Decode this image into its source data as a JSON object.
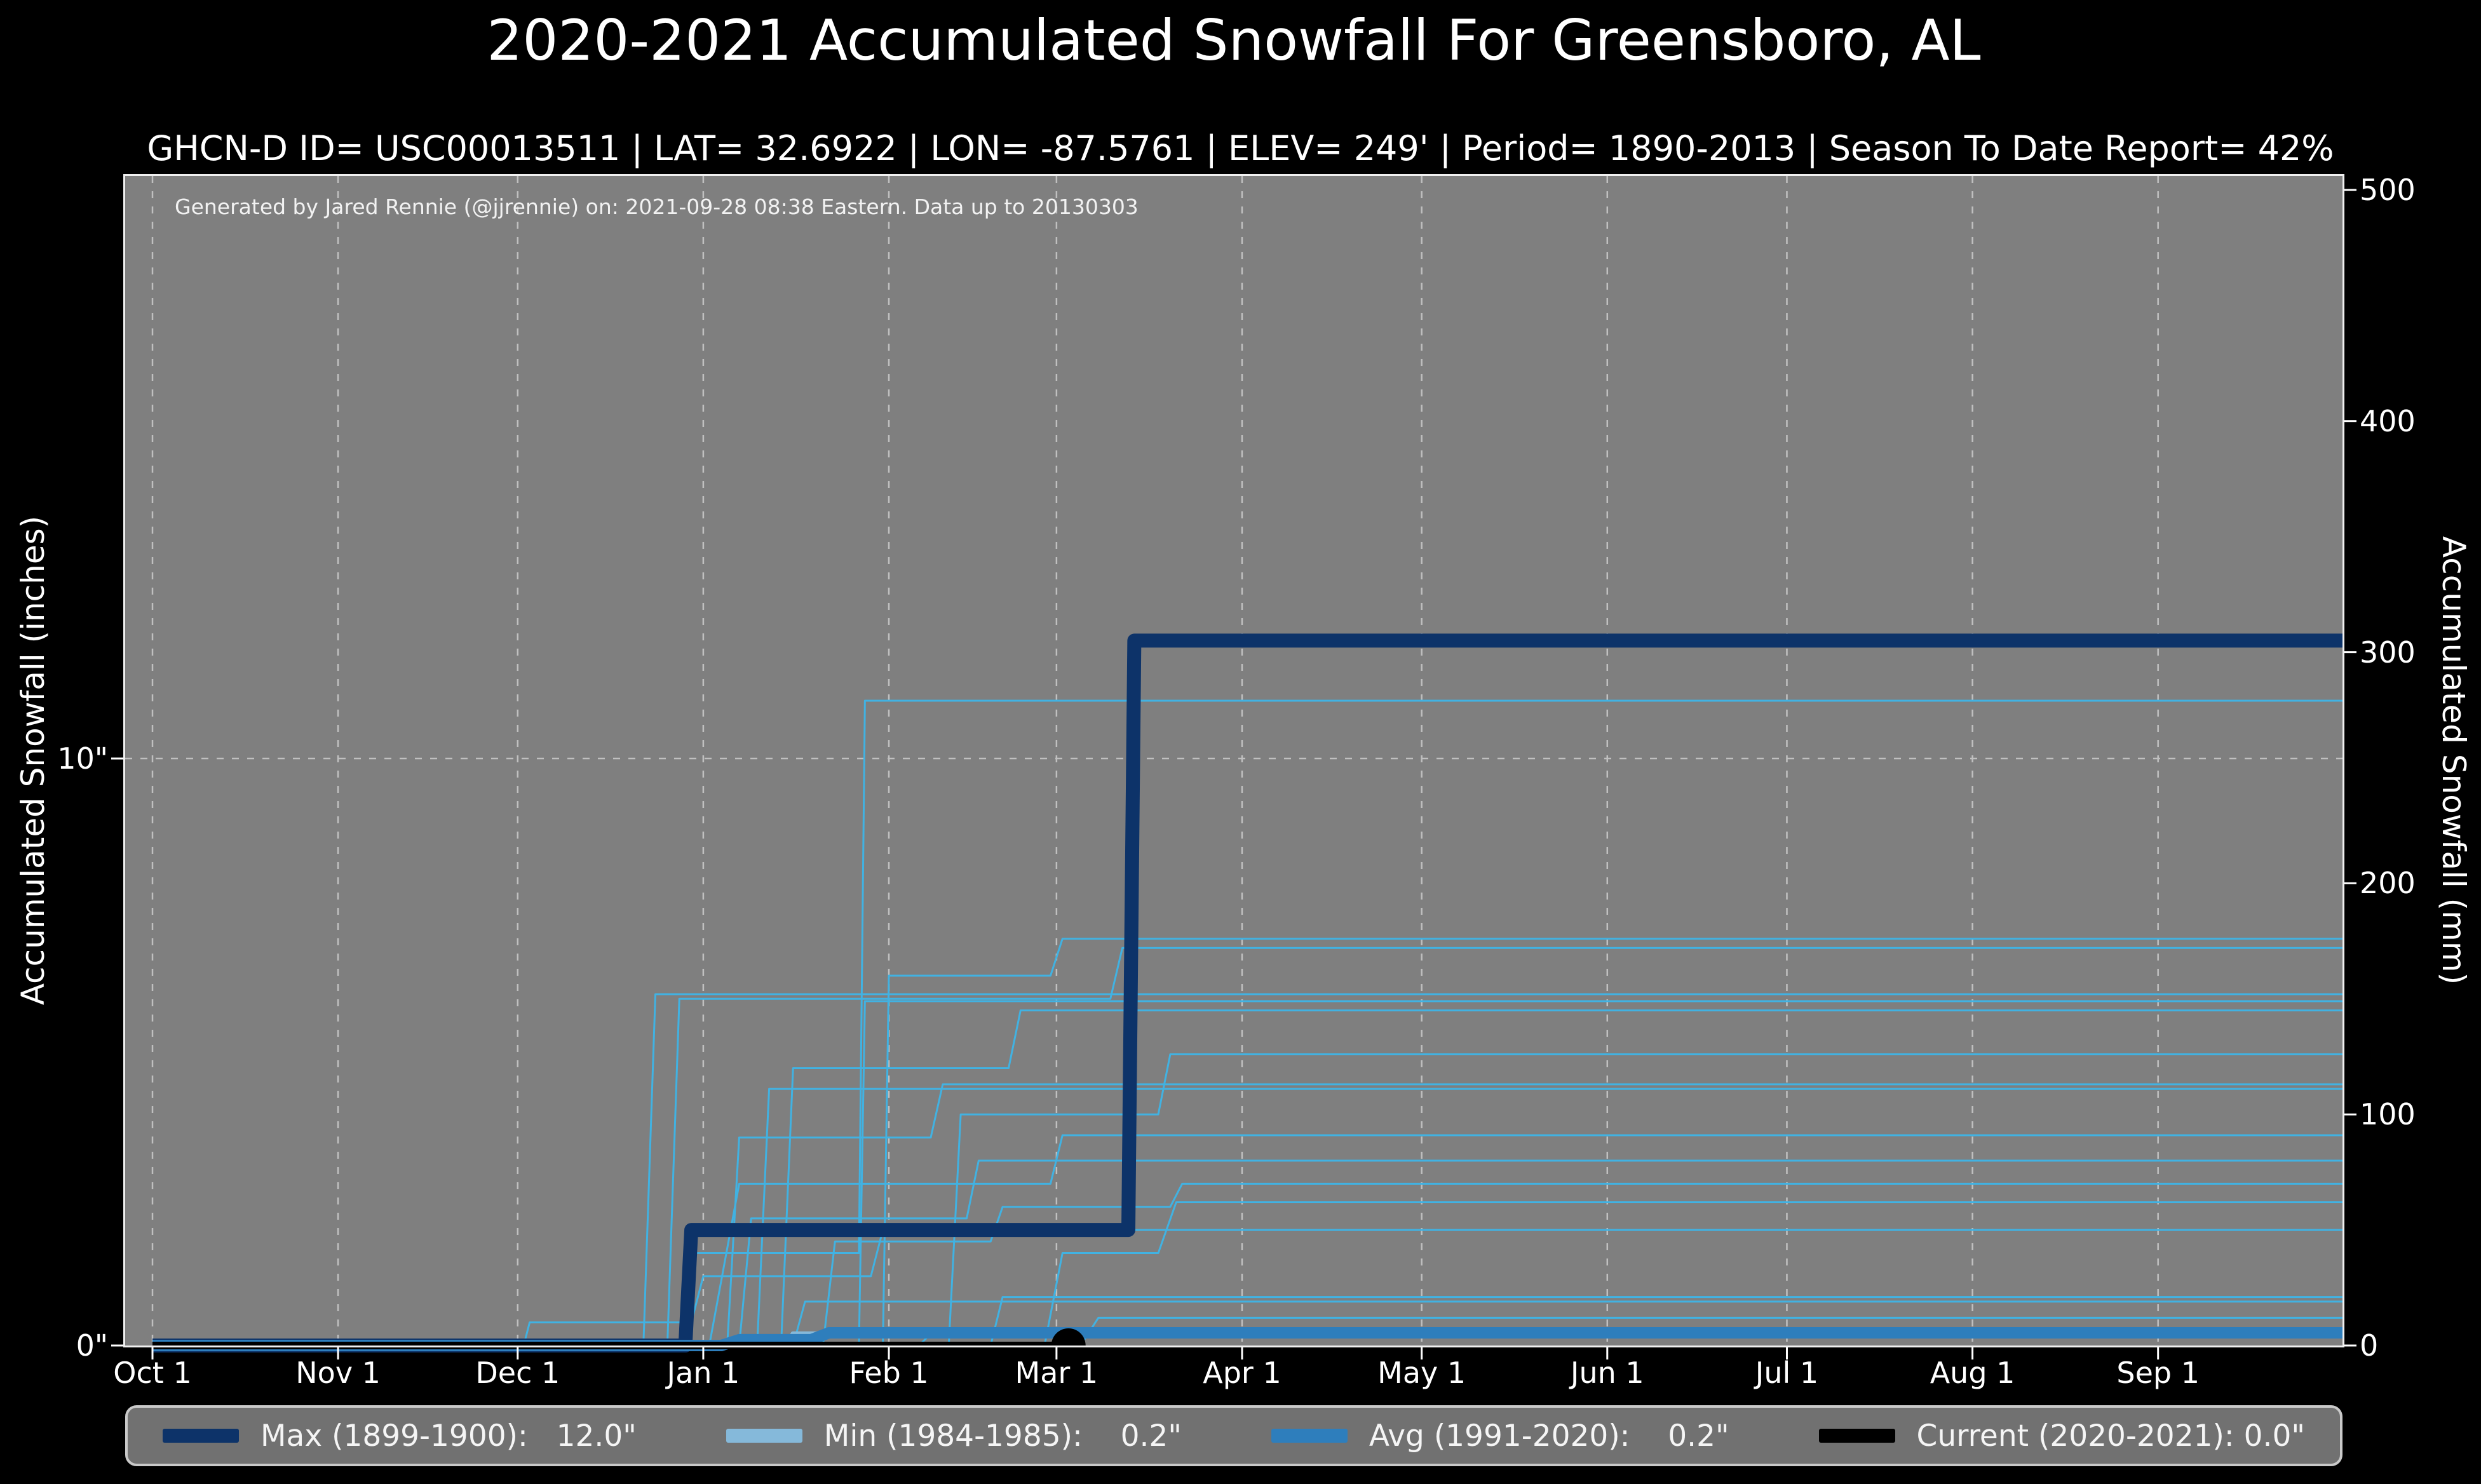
{
  "header": {
    "title": "2020-2021 Accumulated Snowfall For Greensboro, AL",
    "subtitle": "GHCN-D ID= USC00013511 | LAT= 32.6922 | LON= -87.5761 | ELEV= 249' | Period= 1890-2013 | Season To Date Report= 42%"
  },
  "annotation": {
    "text": "Generated by Jared Rennie (@jjrennie) on: 2021-09-28 08:38 Eastern. Data up to 20130303"
  },
  "colors": {
    "figure_background": "#000000",
    "plot_background": "#7f7f7f",
    "spine": "#f0f0f0",
    "gridline": "#c0c0c0",
    "max_line": "#0d3369",
    "min_line": "#85b9da",
    "avg_line": "#2e7ebc",
    "current_line": "#000000",
    "other_seasons": "#41b2e2",
    "legend_background": "#717171",
    "legend_border": "#c9c9c9"
  },
  "legend": {
    "items": [
      {
        "name": "max",
        "text": "Max (1899-1900):   12.0\"",
        "color": "#0d3369"
      },
      {
        "name": "min",
        "text": "Min (1984-1985):    0.2\"",
        "color": "#85b9da"
      },
      {
        "name": "avg",
        "text": "Avg (1991-2020):    0.2\"",
        "color": "#2e7ebc"
      },
      {
        "name": "current",
        "text": "Current (2020-2021): 0.0\"",
        "color": "#000000"
      }
    ]
  },
  "chart_data": {
    "type": "line",
    "title": "2020-2021 Accumulated Snowfall For Greensboro, AL",
    "xlabel": "",
    "ylabel_left": "Accumulated Snowfall (inches)",
    "ylabel_right": "Accumulated Snowfall (mm)",
    "x_axis": {
      "unit": "day of season (Oct 1 = 0)",
      "range": [
        0,
        366
      ],
      "ticks": [
        {
          "label": "Oct 1",
          "day": 0
        },
        {
          "label": "Nov 1",
          "day": 31
        },
        {
          "label": "Dec 1",
          "day": 61
        },
        {
          "label": "Jan 1",
          "day": 92
        },
        {
          "label": "Feb 1",
          "day": 123
        },
        {
          "label": "Mar 1",
          "day": 151
        },
        {
          "label": "Apr 1",
          "day": 182
        },
        {
          "label": "May 1",
          "day": 212
        },
        {
          "label": "Jun 1",
          "day": 243
        },
        {
          "label": "Jul 1",
          "day": 273
        },
        {
          "label": "Aug 1",
          "day": 304
        },
        {
          "label": "Sep 1",
          "day": 335
        }
      ],
      "grid": "dashed vertical at every month tick"
    },
    "y_axis_left": {
      "label": "Accumulated Snowfall (inches)",
      "ticks": [
        {
          "text": "0\"",
          "mm": 0
        },
        {
          "text": "10\"",
          "mm": 254
        }
      ],
      "grid": "dashed horizontal at 10 inches"
    },
    "y_axis_right": {
      "label": "Accumulated Snowfall (mm)",
      "ticks": [
        0,
        100,
        200,
        300,
        400,
        500
      ],
      "range_mm": [
        0,
        506
      ]
    },
    "series": [
      {
        "name": "Max (1899-1900)",
        "season_total_inches": 12.0,
        "color": "#0d3369",
        "width": 22,
        "points_day_mm": [
          [
            0,
            0
          ],
          [
            89,
            0
          ],
          [
            90,
            50
          ],
          [
            163,
            50
          ],
          [
            164,
            305
          ],
          [
            366,
            305
          ]
        ]
      },
      {
        "name": "Min (1984-1985)",
        "season_total_inches": 0.2,
        "color": "#85b9da",
        "width": 8,
        "points_day_mm": [
          [
            0,
            0
          ],
          [
            106,
            0
          ],
          [
            107,
            5
          ],
          [
            366,
            5
          ]
        ]
      },
      {
        "name": "Avg (1991-2020)",
        "season_total_inches": 0.2,
        "color": "#2e7ebc",
        "width": 18,
        "points_day_mm": [
          [
            0,
            0
          ],
          [
            95,
            0
          ],
          [
            98,
            2.5
          ],
          [
            110,
            2.5
          ],
          [
            113,
            5.5
          ],
          [
            366,
            5.5
          ]
        ]
      },
      {
        "name": "Current (2020-2021)",
        "season_total_inches": 0.0,
        "color": "#000000",
        "width": 12,
        "points_day_mm": [
          [
            0,
            0
          ],
          [
            153,
            0
          ]
        ],
        "end_dot": {
          "day": 153,
          "mm": 0,
          "radius": 27
        }
      }
    ],
    "other_seasons": {
      "note": "thin step lines for each historical season 1890-2013, values approximated from plot",
      "color": "#41b2e2",
      "width": 3,
      "paths_day_mm": [
        [
          [
            0,
            0
          ],
          [
            89,
            0
          ],
          [
            90,
            40
          ],
          [
            118,
            40
          ],
          [
            119,
            279
          ],
          [
            366,
            279
          ]
        ],
        [
          [
            0,
            0
          ],
          [
            122,
            0
          ],
          [
            123,
            160
          ],
          [
            150,
            160
          ],
          [
            152,
            176
          ],
          [
            366,
            176
          ]
        ],
        [
          [
            0,
            0
          ],
          [
            86,
            0
          ],
          [
            88,
            150
          ],
          [
            160,
            150
          ],
          [
            162,
            172
          ],
          [
            366,
            172
          ]
        ],
        [
          [
            0,
            0
          ],
          [
            82,
            0
          ],
          [
            84,
            152
          ],
          [
            366,
            152
          ]
        ],
        [
          [
            0,
            0
          ],
          [
            118,
            0
          ],
          [
            119,
            149
          ],
          [
            366,
            149
          ]
        ],
        [
          [
            0,
            0
          ],
          [
            105,
            0
          ],
          [
            107,
            120
          ],
          [
            143,
            120
          ],
          [
            145,
            145
          ],
          [
            366,
            145
          ]
        ],
        [
          [
            0,
            0
          ],
          [
            133,
            0
          ],
          [
            135,
            100
          ],
          [
            168,
            100
          ],
          [
            170,
            126
          ],
          [
            366,
            126
          ]
        ],
        [
          [
            0,
            0
          ],
          [
            96,
            0
          ],
          [
            98,
            90
          ],
          [
            130,
            90
          ],
          [
            132,
            113
          ],
          [
            366,
            113
          ]
        ],
        [
          [
            0,
            0
          ],
          [
            101,
            0
          ],
          [
            103,
            111
          ],
          [
            366,
            111
          ]
        ],
        [
          [
            0,
            0
          ],
          [
            93,
            0
          ],
          [
            98,
            70
          ],
          [
            150,
            70
          ],
          [
            152,
            91
          ],
          [
            366,
            91
          ]
        ],
        [
          [
            0,
            0
          ],
          [
            98,
            0
          ],
          [
            100,
            55
          ],
          [
            136,
            55
          ],
          [
            138,
            80
          ],
          [
            366,
            80
          ]
        ],
        [
          [
            0,
            0
          ],
          [
            112,
            0
          ],
          [
            114,
            45
          ],
          [
            140,
            45
          ],
          [
            142,
            60
          ],
          [
            170,
            60
          ],
          [
            172,
            70
          ],
          [
            366,
            70
          ]
        ],
        [
          [
            0,
            0
          ],
          [
            149,
            0
          ],
          [
            152,
            40
          ],
          [
            168,
            40
          ],
          [
            171,
            62
          ],
          [
            366,
            62
          ]
        ],
        [
          [
            0,
            0
          ],
          [
            62,
            0
          ],
          [
            63,
            10
          ],
          [
            90,
            10
          ],
          [
            92,
            30
          ],
          [
            120,
            30
          ],
          [
            122,
            50
          ],
          [
            366,
            50
          ]
        ],
        [
          [
            0,
            0
          ],
          [
            140,
            0
          ],
          [
            142,
            21
          ],
          [
            366,
            21
          ]
        ],
        [
          [
            0,
            0
          ],
          [
            107,
            0
          ],
          [
            109,
            19
          ],
          [
            366,
            19
          ]
        ],
        [
          [
            0,
            0
          ],
          [
            155,
            0
          ],
          [
            158,
            12
          ],
          [
            366,
            12
          ]
        ],
        [
          [
            0,
            0
          ],
          [
            128,
            0
          ],
          [
            130,
            5
          ],
          [
            366,
            5
          ]
        ]
      ]
    }
  }
}
